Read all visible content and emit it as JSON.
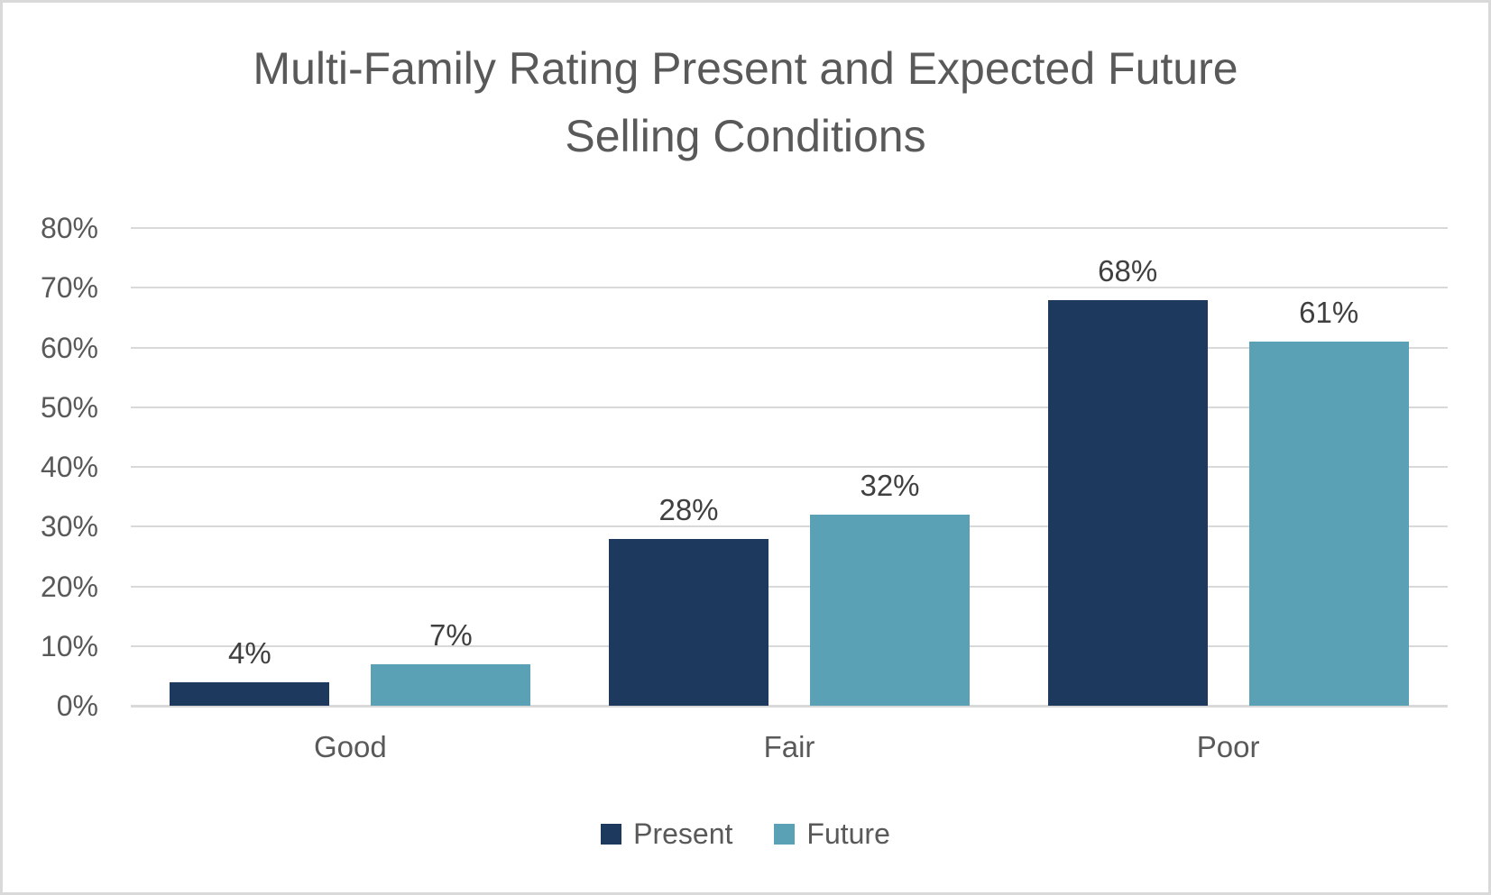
{
  "chart_data": {
    "type": "bar",
    "title": "Multi-Family Rating Present and Expected Future Selling Conditions",
    "categories": [
      "Good",
      "Fair",
      "Poor"
    ],
    "series": [
      {
        "name": "Present",
        "color": "#1D3A5E",
        "values": [
          4,
          28,
          68
        ]
      },
      {
        "name": "Future",
        "color": "#5AA1B5",
        "values": [
          7,
          32,
          61
        ]
      }
    ],
    "data_labels": [
      [
        "4%",
        "28%",
        "68%"
      ],
      [
        "7%",
        "32%",
        "61%"
      ]
    ],
    "value_suffix": "%",
    "ylim": [
      0,
      80
    ],
    "y_tick_step": 10,
    "y_tick_labels": [
      "0%",
      "10%",
      "20%",
      "30%",
      "40%",
      "50%",
      "60%",
      "70%",
      "80%"
    ],
    "xlabel": "",
    "ylabel": "",
    "grid": true,
    "legend_position": "bottom",
    "colors": {
      "title_text": "#595959",
      "axis_text": "#595959",
      "data_label_text": "#404040",
      "gridline": "#d9d9d9",
      "frame_border": "#d9d9d9",
      "background": "#ffffff"
    }
  }
}
